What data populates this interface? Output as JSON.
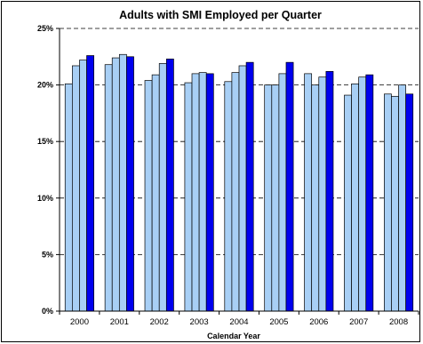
{
  "chart_data": {
    "type": "bar",
    "title": "Adults with SMI Employed per Quarter",
    "xlabel": "Calendar Year",
    "ylabel": "",
    "ylim": [
      0,
      25
    ],
    "yticks": [
      "0%",
      "5%",
      "10%",
      "15%",
      "20%",
      "25%"
    ],
    "categories": [
      "2000",
      "2001",
      "2002",
      "2003",
      "2004",
      "2005",
      "2006",
      "2007",
      "2008"
    ],
    "grid": "horizontal dashed",
    "legend": "none",
    "bar_colors": [
      "#a8cff5",
      "#a8cff5",
      "#a8cff5",
      "#0000ee"
    ],
    "series": [
      {
        "values": [
          20.1,
          21.8,
          20.4,
          20.2,
          20.3,
          20.0,
          21.0,
          19.1,
          19.2
        ]
      },
      {
        "values": [
          21.7,
          22.4,
          20.9,
          21.0,
          21.1,
          20.0,
          20.0,
          20.1,
          19.0
        ]
      },
      {
        "values": [
          22.2,
          22.7,
          21.9,
          21.1,
          21.7,
          21.0,
          20.7,
          20.7,
          20.0
        ]
      },
      {
        "values": [
          22.6,
          22.5,
          22.3,
          21.0,
          22.0,
          22.0,
          21.2,
          20.9,
          19.2
        ]
      }
    ]
  }
}
